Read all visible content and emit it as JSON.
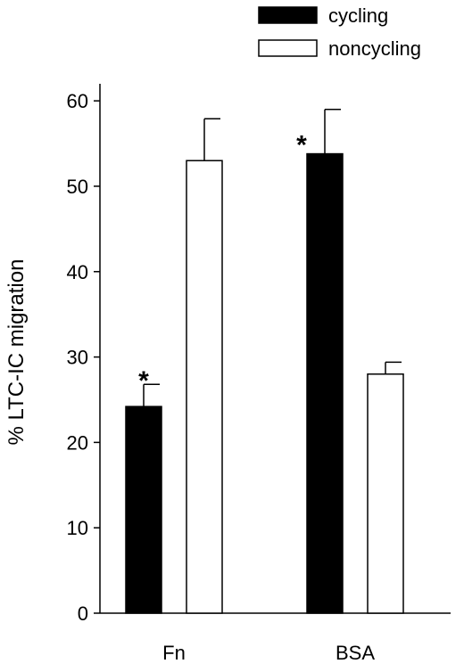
{
  "chart_data": {
    "type": "bar",
    "title": "",
    "xlabel": "",
    "ylabel": "% LTC-IC migration",
    "ylim": [
      0,
      62
    ],
    "yticks": [
      0,
      10,
      20,
      30,
      40,
      50,
      60
    ],
    "categories": [
      "Fn",
      "BSA"
    ],
    "legend_position": "top-right",
    "series": [
      {
        "name": "cycling",
        "fill": "#000000",
        "values": [
          24.2,
          53.8
        ],
        "errors": [
          2.6,
          5.2
        ]
      },
      {
        "name": "noncycling",
        "fill": "#ffffff",
        "values": [
          53.0,
          28.0
        ],
        "errors": [
          4.9,
          1.4
        ]
      }
    ],
    "annotations": [
      {
        "category": "Fn",
        "series": "cycling",
        "text": "*"
      },
      {
        "category": "BSA",
        "series": "cycling",
        "text": "*"
      }
    ]
  }
}
